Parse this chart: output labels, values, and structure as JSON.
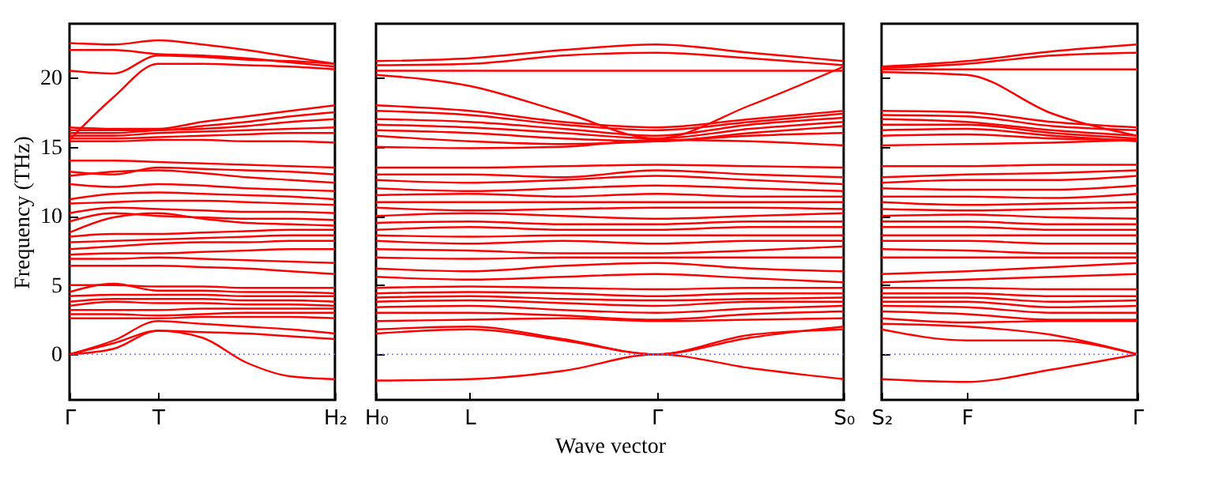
{
  "chart_data": [
    {
      "type": "line",
      "ylabel": "Frequency (THz)",
      "categories": [
        "Γ",
        null,
        "T",
        null,
        null,
        null,
        "H₂"
      ],
      "ylim": [
        -3.3,
        23.9
      ],
      "yticks": [
        0,
        5,
        10,
        15,
        20
      ],
      "ref_lines": [
        {
          "axis": "y",
          "value": 0,
          "color": "#7777ee",
          "line_style": "dotted"
        }
      ],
      "series": [
        {
          "color": "#ff0000",
          "values": [
            22.5,
            22.4,
            22.7,
            22.4,
            22.0,
            21.5,
            21.0
          ]
        },
        {
          "color": "#ff0000",
          "values": [
            22.0,
            22.0,
            21.7,
            21.6,
            21.4,
            21.1,
            20.8
          ]
        },
        {
          "color": "#ff0000",
          "values": [
            20.5,
            20.3,
            21.6,
            21.5,
            21.3,
            21.2,
            21.0
          ]
        },
        {
          "color": "#ff0000",
          "values": [
            15.5,
            18.6,
            21.0,
            21.0,
            20.9,
            20.8,
            20.6
          ]
        },
        {
          "color": "#ff0000",
          "values": [
            16.4,
            16.3,
            16.3,
            16.8,
            17.2,
            17.6,
            18.0
          ]
        },
        {
          "color": "#ff0000",
          "values": [
            16.2,
            16.2,
            16.2,
            16.5,
            16.8,
            17.2,
            17.5
          ]
        },
        {
          "color": "#ff0000",
          "values": [
            16.0,
            16.0,
            16.2,
            16.3,
            16.5,
            16.8,
            17.0
          ]
        },
        {
          "color": "#ff0000",
          "values": [
            15.8,
            15.8,
            16.0,
            16.1,
            16.2,
            16.3,
            16.4
          ]
        },
        {
          "color": "#ff0000",
          "values": [
            15.6,
            15.6,
            15.7,
            15.8,
            15.9,
            16.0,
            16.0
          ]
        },
        {
          "color": "#ff0000",
          "values": [
            15.4,
            15.4,
            15.5,
            15.5,
            15.4,
            15.4,
            15.3
          ]
        },
        {
          "color": "#ff0000",
          "values": [
            14.0,
            14.0,
            13.9,
            13.8,
            13.7,
            13.6,
            13.5
          ]
        },
        {
          "color": "#ff0000",
          "values": [
            13.2,
            13.0,
            13.5,
            13.4,
            13.3,
            13.2,
            13.0
          ]
        },
        {
          "color": "#ff0000",
          "values": [
            12.9,
            13.2,
            13.3,
            13.1,
            12.8,
            12.6,
            12.4
          ]
        },
        {
          "color": "#ff0000",
          "values": [
            12.3,
            12.1,
            12.3,
            12.2,
            12.0,
            11.9,
            11.8
          ]
        },
        {
          "color": "#ff0000",
          "values": [
            11.2,
            11.6,
            11.7,
            11.6,
            11.5,
            11.4,
            11.2
          ]
        },
        {
          "color": "#ff0000",
          "values": [
            10.9,
            11.0,
            11.1,
            11.1,
            11.0,
            10.9,
            10.8
          ]
        },
        {
          "color": "#ff0000",
          "values": [
            10.2,
            10.6,
            10.5,
            10.4,
            10.3,
            10.3,
            10.2
          ]
        },
        {
          "color": "#ff0000",
          "values": [
            9.6,
            10.2,
            10.0,
            9.9,
            9.8,
            9.8,
            9.7
          ]
        },
        {
          "color": "#ff0000",
          "values": [
            8.8,
            9.9,
            10.2,
            9.8,
            9.5,
            9.4,
            9.3
          ]
        },
        {
          "color": "#ff0000",
          "values": [
            8.5,
            8.7,
            8.7,
            8.8,
            8.9,
            9.0,
            9.0
          ]
        },
        {
          "color": "#ff0000",
          "values": [
            8.1,
            8.2,
            8.3,
            8.4,
            8.5,
            8.6,
            8.6
          ]
        },
        {
          "color": "#ff0000",
          "values": [
            7.6,
            7.8,
            8.0,
            8.1,
            8.1,
            8.2,
            8.2
          ]
        },
        {
          "color": "#ff0000",
          "values": [
            7.2,
            7.3,
            7.3,
            7.4,
            7.5,
            7.6,
            7.6
          ]
        },
        {
          "color": "#ff0000",
          "values": [
            6.9,
            6.9,
            7.0,
            6.9,
            6.8,
            6.7,
            6.6
          ]
        },
        {
          "color": "#ff0000",
          "values": [
            6.4,
            6.4,
            6.4,
            6.3,
            6.2,
            6.0,
            5.8
          ]
        },
        {
          "color": "#ff0000",
          "values": [
            5.0,
            5.0,
            4.9,
            4.9,
            4.8,
            4.8,
            4.8
          ]
        },
        {
          "color": "#ff0000",
          "values": [
            4.5,
            5.1,
            4.6,
            4.6,
            4.5,
            4.5,
            4.4
          ]
        },
        {
          "color": "#ff0000",
          "values": [
            4.2,
            4.3,
            4.3,
            4.3,
            4.2,
            4.2,
            4.2
          ]
        },
        {
          "color": "#ff0000",
          "values": [
            3.8,
            4.0,
            4.0,
            4.0,
            3.9,
            3.9,
            3.8
          ]
        },
        {
          "color": "#ff0000",
          "values": [
            3.5,
            3.8,
            3.7,
            3.7,
            3.6,
            3.6,
            3.5
          ]
        },
        {
          "color": "#ff0000",
          "values": [
            3.2,
            3.2,
            3.2,
            3.3,
            3.3,
            3.3,
            3.3
          ]
        },
        {
          "color": "#ff0000",
          "values": [
            2.9,
            2.9,
            2.8,
            2.9,
            3.0,
            3.0,
            3.0
          ]
        },
        {
          "color": "#ff0000",
          "values": [
            2.6,
            2.6,
            2.6,
            2.7,
            2.7,
            2.7,
            2.6
          ]
        },
        {
          "color": "#ff0000",
          "values": [
            0,
            1.0,
            2.4,
            2.2,
            2.0,
            1.8,
            1.5
          ]
        },
        {
          "color": "#ff0000",
          "values": [
            0,
            0.8,
            1.7,
            1.6,
            1.5,
            1.3,
            1.1
          ]
        },
        {
          "color": "#ff0000",
          "values": [
            0,
            0.4,
            1.7,
            1.2,
            -0.6,
            -1.6,
            -1.8
          ]
        }
      ]
    },
    {
      "type": "line",
      "xlabel": "Wave vector",
      "categories": [
        "H₀",
        "L",
        null,
        "Γ",
        null,
        "S₀"
      ],
      "ylim": [
        -3.3,
        23.9
      ],
      "yticks": [
        0,
        5,
        10,
        15,
        20
      ],
      "tick_labels": "x",
      "ref_lines": [
        {
          "axis": "y",
          "value": 0,
          "color": "#7777ee",
          "line_style": "dotted"
        }
      ],
      "series": [
        {
          "color": "#ff0000",
          "values": [
            21.2,
            21.4,
            22.0,
            22.4,
            21.8,
            21.2
          ]
        },
        {
          "color": "#ff0000",
          "values": [
            20.9,
            21.0,
            21.6,
            21.8,
            21.4,
            20.9
          ]
        },
        {
          "color": "#ff0000",
          "values": [
            20.5,
            20.5,
            20.5,
            20.5,
            20.5,
            20.5
          ]
        },
        {
          "color": "#ff0000",
          "values": [
            20.2,
            19.4,
            17.5,
            15.6,
            18.0,
            20.8
          ]
        },
        {
          "color": "#ff0000",
          "values": [
            18.0,
            17.6,
            16.8,
            16.4,
            17.0,
            17.6
          ]
        },
        {
          "color": "#ff0000",
          "values": [
            17.6,
            17.3,
            16.6,
            16.2,
            16.8,
            17.4
          ]
        },
        {
          "color": "#ff0000",
          "values": [
            17.0,
            16.8,
            16.3,
            15.8,
            16.6,
            17.1
          ]
        },
        {
          "color": "#ff0000",
          "values": [
            16.6,
            16.4,
            16.0,
            15.6,
            16.3,
            16.8
          ]
        },
        {
          "color": "#ff0000",
          "values": [
            16.2,
            16.0,
            15.6,
            15.4,
            16.0,
            16.5
          ]
        },
        {
          "color": "#ff0000",
          "values": [
            15.8,
            15.4,
            15.2,
            15.4,
            15.8,
            16.0
          ]
        },
        {
          "color": "#ff0000",
          "values": [
            15.0,
            14.9,
            15.0,
            15.5,
            15.4,
            15.1
          ]
        },
        {
          "color": "#ff0000",
          "values": [
            13.5,
            13.5,
            13.6,
            13.7,
            13.6,
            13.5
          ]
        },
        {
          "color": "#ff0000",
          "values": [
            13.0,
            13.0,
            12.8,
            13.3,
            13.0,
            12.8
          ]
        },
        {
          "color": "#ff0000",
          "values": [
            12.6,
            12.4,
            12.6,
            12.9,
            12.6,
            12.3
          ]
        },
        {
          "color": "#ff0000",
          "values": [
            12.0,
            11.8,
            12.0,
            12.2,
            12.0,
            11.8
          ]
        },
        {
          "color": "#ff0000",
          "values": [
            11.5,
            11.6,
            11.4,
            11.6,
            11.4,
            11.4
          ]
        },
        {
          "color": "#ff0000",
          "values": [
            11.0,
            11.0,
            11.0,
            11.0,
            11.0,
            11.0
          ]
        },
        {
          "color": "#ff0000",
          "values": [
            10.6,
            10.4,
            10.5,
            10.6,
            10.6,
            10.5
          ]
        },
        {
          "color": "#ff0000",
          "values": [
            10.0,
            10.2,
            10.0,
            9.8,
            10.0,
            10.2
          ]
        },
        {
          "color": "#ff0000",
          "values": [
            9.5,
            9.6,
            9.4,
            9.4,
            9.6,
            9.6
          ]
        },
        {
          "color": "#ff0000",
          "values": [
            9.0,
            9.2,
            9.0,
            9.0,
            9.2,
            9.2
          ]
        },
        {
          "color": "#ff0000",
          "values": [
            8.6,
            8.5,
            8.6,
            8.6,
            8.6,
            8.6
          ]
        },
        {
          "color": "#ff0000",
          "values": [
            8.2,
            8.0,
            8.2,
            8.0,
            8.2,
            8.2
          ]
        },
        {
          "color": "#ff0000",
          "values": [
            7.6,
            7.5,
            7.3,
            7.3,
            7.5,
            7.8
          ]
        },
        {
          "color": "#ff0000",
          "values": [
            7.0,
            6.9,
            7.0,
            7.0,
            7.0,
            7.0
          ]
        },
        {
          "color": "#ff0000",
          "values": [
            6.2,
            6.0,
            6.4,
            6.6,
            6.2,
            6.0
          ]
        },
        {
          "color": "#ff0000",
          "values": [
            5.6,
            5.4,
            5.6,
            5.8,
            5.5,
            5.2
          ]
        },
        {
          "color": "#ff0000",
          "values": [
            4.8,
            4.9,
            4.8,
            4.7,
            4.8,
            4.8
          ]
        },
        {
          "color": "#ff0000",
          "values": [
            4.4,
            4.5,
            4.4,
            4.2,
            4.4,
            4.4
          ]
        },
        {
          "color": "#ff0000",
          "values": [
            4.1,
            4.2,
            4.0,
            3.9,
            4.0,
            4.1
          ]
        },
        {
          "color": "#ff0000",
          "values": [
            3.8,
            3.9,
            3.7,
            3.5,
            3.8,
            3.8
          ]
        },
        {
          "color": "#ff0000",
          "values": [
            3.4,
            3.5,
            3.2,
            3.0,
            3.3,
            3.5
          ]
        },
        {
          "color": "#ff0000",
          "values": [
            3.0,
            3.0,
            2.8,
            2.5,
            2.9,
            3.1
          ]
        },
        {
          "color": "#ff0000",
          "values": [
            2.4,
            2.5,
            2.6,
            2.4,
            2.5,
            2.6
          ]
        },
        {
          "color": "#ff0000",
          "values": [
            1.8,
            2.0,
            1.1,
            0,
            1.2,
            2.0
          ]
        },
        {
          "color": "#ff0000",
          "values": [
            1.5,
            1.8,
            1.0,
            0,
            1.4,
            1.8
          ]
        },
        {
          "color": "#ff0000",
          "values": [
            -1.9,
            -1.8,
            -1.2,
            0,
            -1.0,
            -1.8
          ]
        }
      ]
    },
    {
      "type": "line",
      "categories": [
        "S₂",
        "F",
        null,
        "Γ"
      ],
      "ylim": [
        -3.3,
        23.9
      ],
      "yticks": [
        0,
        5,
        10,
        15,
        20
      ],
      "tick_labels": "x",
      "ref_lines": [
        {
          "axis": "y",
          "value": 0,
          "color": "#7777ee",
          "line_style": "dotted"
        }
      ],
      "series": [
        {
          "color": "#ff0000",
          "values": [
            20.8,
            21.2,
            21.9,
            22.4
          ]
        },
        {
          "color": "#ff0000",
          "values": [
            20.7,
            21.0,
            21.6,
            21.8
          ]
        },
        {
          "color": "#ff0000",
          "values": [
            20.6,
            20.6,
            20.6,
            20.6
          ]
        },
        {
          "color": "#ff0000",
          "values": [
            20.4,
            20.2,
            17.4,
            15.8
          ]
        },
        {
          "color": "#ff0000",
          "values": [
            17.6,
            17.5,
            16.8,
            16.4
          ]
        },
        {
          "color": "#ff0000",
          "values": [
            17.3,
            17.2,
            16.5,
            16.2
          ]
        },
        {
          "color": "#ff0000",
          "values": [
            17.0,
            16.8,
            16.2,
            15.8
          ]
        },
        {
          "color": "#ff0000",
          "values": [
            16.6,
            16.6,
            16.0,
            15.6
          ]
        },
        {
          "color": "#ff0000",
          "values": [
            16.2,
            16.3,
            15.8,
            15.4
          ]
        },
        {
          "color": "#ff0000",
          "values": [
            15.8,
            15.9,
            15.6,
            15.5
          ]
        },
        {
          "color": "#ff0000",
          "values": [
            15.1,
            15.2,
            15.3,
            15.5
          ]
        },
        {
          "color": "#ff0000",
          "values": [
            13.6,
            13.6,
            13.7,
            13.7
          ]
        },
        {
          "color": "#ff0000",
          "values": [
            12.8,
            13.0,
            13.1,
            13.3
          ]
        },
        {
          "color": "#ff0000",
          "values": [
            12.4,
            12.6,
            12.6,
            12.9
          ]
        },
        {
          "color": "#ff0000",
          "values": [
            12.0,
            11.9,
            11.9,
            12.2
          ]
        },
        {
          "color": "#ff0000",
          "values": [
            11.4,
            11.4,
            11.3,
            11.6
          ]
        },
        {
          "color": "#ff0000",
          "values": [
            11.0,
            10.8,
            10.9,
            11.0
          ]
        },
        {
          "color": "#ff0000",
          "values": [
            10.5,
            10.4,
            10.5,
            10.6
          ]
        },
        {
          "color": "#ff0000",
          "values": [
            10.0,
            10.1,
            9.9,
            9.8
          ]
        },
        {
          "color": "#ff0000",
          "values": [
            9.6,
            9.6,
            9.4,
            9.4
          ]
        },
        {
          "color": "#ff0000",
          "values": [
            9.2,
            9.2,
            9.0,
            9.0
          ]
        },
        {
          "color": "#ff0000",
          "values": [
            8.6,
            8.6,
            8.6,
            8.6
          ]
        },
        {
          "color": "#ff0000",
          "values": [
            8.2,
            8.2,
            8.0,
            8.0
          ]
        },
        {
          "color": "#ff0000",
          "values": [
            7.6,
            7.5,
            7.3,
            7.3
          ]
        },
        {
          "color": "#ff0000",
          "values": [
            7.0,
            7.0,
            7.0,
            7.0
          ]
        },
        {
          "color": "#ff0000",
          "values": [
            5.8,
            6.0,
            6.3,
            6.6
          ]
        },
        {
          "color": "#ff0000",
          "values": [
            5.2,
            5.4,
            5.6,
            5.8
          ]
        },
        {
          "color": "#ff0000",
          "values": [
            4.8,
            4.8,
            4.7,
            4.7
          ]
        },
        {
          "color": "#ff0000",
          "values": [
            4.4,
            4.4,
            4.2,
            4.2
          ]
        },
        {
          "color": "#ff0000",
          "values": [
            4.1,
            4.1,
            3.8,
            3.9
          ]
        },
        {
          "color": "#ff0000",
          "values": [
            3.8,
            3.8,
            3.4,
            3.5
          ]
        },
        {
          "color": "#ff0000",
          "values": [
            3.5,
            3.4,
            3.0,
            3.0
          ]
        },
        {
          "color": "#ff0000",
          "values": [
            3.1,
            2.9,
            2.5,
            2.5
          ]
        },
        {
          "color": "#ff0000",
          "values": [
            2.6,
            2.3,
            2.4,
            2.4
          ]
        },
        {
          "color": "#ff0000",
          "values": [
            2.2,
            2.0,
            1.4,
            0
          ]
        },
        {
          "color": "#ff0000",
          "values": [
            1.8,
            1.0,
            1.0,
            0
          ]
        },
        {
          "color": "#ff0000",
          "values": [
            -1.8,
            -2.0,
            -1.1,
            0
          ]
        }
      ]
    }
  ]
}
